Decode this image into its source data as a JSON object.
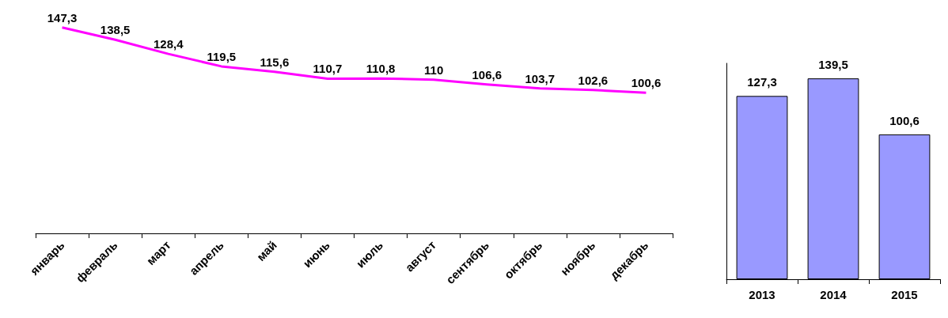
{
  "chart_data": [
    {
      "type": "line",
      "categories": [
        "январь",
        "февраль",
        "март",
        "апрель",
        "май",
        "июнь",
        "июль",
        "август",
        "сентябрь",
        "октябрь",
        "ноябрь",
        "декабрь"
      ],
      "series": [
        {
          "color": "#ff00ff",
          "values": [
            147.3,
            138.5,
            128.4,
            119.5,
            115.6,
            110.7,
            110.8,
            110,
            106.6,
            103.7,
            102.6,
            100.6
          ],
          "value_labels": [
            "147,3",
            "138,5",
            "128,4",
            "119,5",
            "115,6",
            "110,7",
            "110,8",
            "110",
            "106,6",
            "103,7",
            "102,6",
            "100,6"
          ]
        }
      ],
      "marker": "none",
      "grid": false,
      "tick_labels": "x"
    },
    {
      "type": "bar",
      "categories": [
        "2013",
        "2014",
        "2015"
      ],
      "series": [
        {
          "color": "#9999ff",
          "values": [
            127.3,
            139.5,
            100.6
          ],
          "value_labels": [
            "127,3",
            "139,5",
            "100,6"
          ]
        }
      ],
      "grid": false,
      "tick_labels": "x"
    }
  ]
}
